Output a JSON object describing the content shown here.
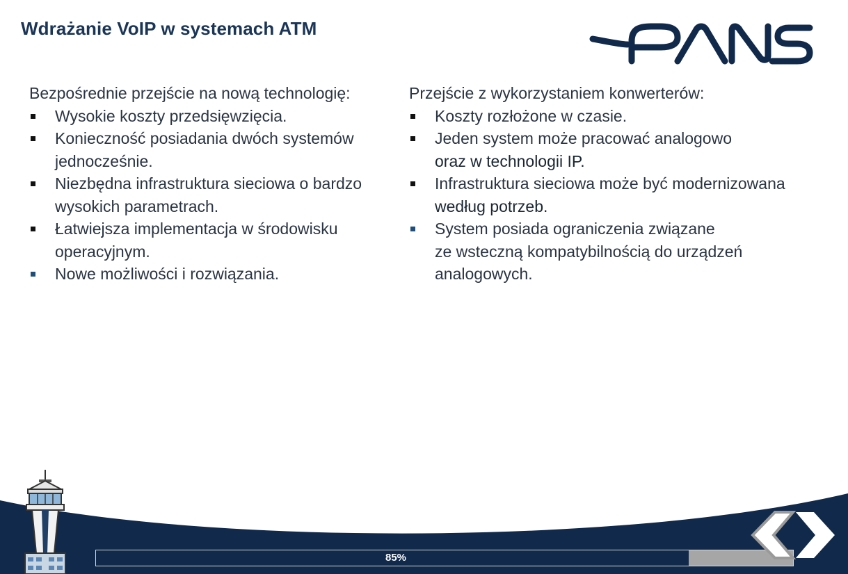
{
  "slide": {
    "title": "Wdrażanie VoIP w systemach ATM",
    "logo_text": "PANSA",
    "left": {
      "lead": "Bezpośrednie przejście na nową technologię:",
      "items": [
        "Wysokie koszty przedsięwzięcia.",
        "Konieczność posiadania dwóch systemów jednocześnie.",
        "Niezbędna infrastruktura sieciowa o bardzo wysokich parametrach.",
        "Łatwiejsza implementacja w środowisku operacyjnym.",
        "Nowe możliwości i rozwiązania."
      ]
    },
    "right": {
      "lead": "Przejście z wykorzystaniem konwerterów:",
      "items": [
        {
          "a": "Koszty rozłożone w czasie.",
          "b": ""
        },
        {
          "a": "Jeden system może pracować analogowo",
          "b": "oraz w technologii IP."
        },
        {
          "a": "Infrastruktura sieciowa może być modernizowana",
          "b": "według potrzeb."
        },
        {
          "a": "System posiada ograniczenia związane",
          "b": "ze wsteczną kompatybilnością do urządzeń analogowych."
        }
      ]
    }
  },
  "progress": {
    "label": "85%",
    "value": 0.85
  },
  "colors": {
    "navy": "#11294a",
    "title": "#1b3556",
    "progress_track": "#a6a6a6"
  },
  "icons": {
    "prev": "chevron-left-icon",
    "next": "chevron-right-icon",
    "tower": "control-tower-icon",
    "logo": "pansa-logo"
  }
}
